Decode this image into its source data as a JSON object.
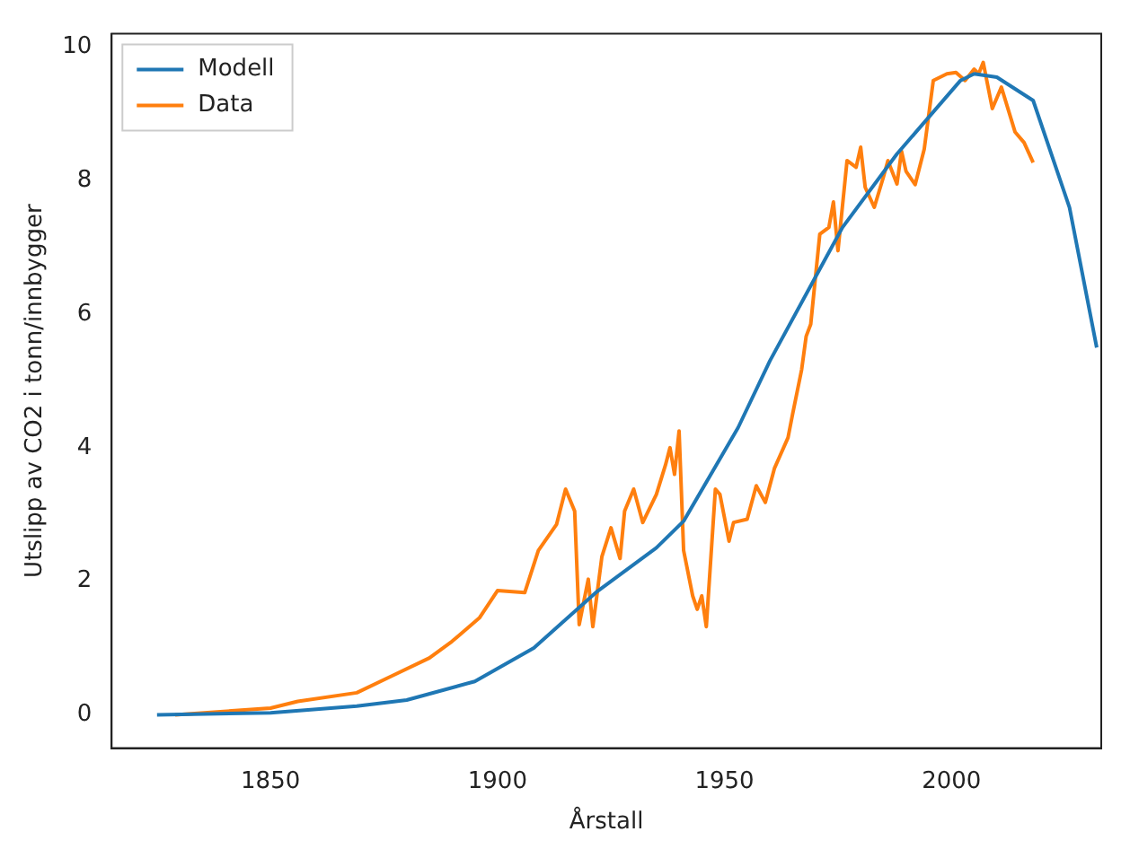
{
  "chart_data": {
    "type": "line",
    "xlabel": "Årstall",
    "ylabel": "Utslipp av CO2 i tonn/innbygger",
    "xlim": [
      1815,
      2033
    ],
    "ylim": [
      -0.5,
      10.2
    ],
    "xticks": [
      1850,
      1900,
      1950,
      2000
    ],
    "yticks": [
      0,
      2,
      4,
      6,
      8,
      10
    ],
    "legend": "top left",
    "grid": false,
    "series": [
      {
        "name": "Modell",
        "color": "#1f77b4",
        "x": [
          1825,
          1850,
          1869,
          1880,
          1895,
          1908,
          1922,
          1935,
          1941,
          1953,
          1960,
          1972,
          1976,
          1988,
          2002,
          2005,
          2010,
          2018,
          2026,
          2032
        ],
        "values": [
          0,
          0.03,
          0.13,
          0.22,
          0.5,
          1.0,
          1.85,
          2.5,
          2.9,
          4.3,
          5.3,
          6.8,
          7.3,
          8.4,
          9.5,
          9.6,
          9.55,
          9.2,
          7.6,
          5.5
        ]
      },
      {
        "name": "Data",
        "color": "#ff7f0e",
        "x": [
          1829,
          1850,
          1856,
          1869,
          1877,
          1885,
          1890,
          1896,
          1900,
          1906,
          1909,
          1913,
          1915,
          1917,
          1918,
          1920,
          1921,
          1923,
          1925,
          1927,
          1928,
          1930,
          1932,
          1935,
          1937,
          1938,
          1939,
          1940,
          1941,
          1943,
          1944,
          1945,
          1946,
          1948,
          1949,
          1951,
          1952,
          1955,
          1957,
          1959,
          1961,
          1964,
          1965,
          1967,
          1968,
          1969,
          1971,
          1973,
          1974,
          1975,
          1977,
          1979,
          1980,
          1981,
          1983,
          1985,
          1986,
          1988,
          1989,
          1990,
          1992,
          1994,
          1996,
          1999,
          2001,
          2003,
          2005,
          2006,
          2007,
          2009,
          2011,
          2014,
          2016,
          2018
        ],
        "values": [
          0,
          0.1,
          0.2,
          0.33,
          0.59,
          0.85,
          1.1,
          1.45,
          1.86,
          1.83,
          2.46,
          2.85,
          3.38,
          3.05,
          1.35,
          2.03,
          1.32,
          2.37,
          2.8,
          2.34,
          3.05,
          3.38,
          2.88,
          3.3,
          3.74,
          4.0,
          3.6,
          4.25,
          2.46,
          1.78,
          1.58,
          1.78,
          1.32,
          3.38,
          3.3,
          2.6,
          2.88,
          2.93,
          3.43,
          3.18,
          3.69,
          4.15,
          4.5,
          5.17,
          5.67,
          5.85,
          7.2,
          7.3,
          7.68,
          6.95,
          8.3,
          8.2,
          8.5,
          7.9,
          7.6,
          8.05,
          8.3,
          7.95,
          8.44,
          8.14,
          7.94,
          8.47,
          9.5,
          9.6,
          9.62,
          9.5,
          9.67,
          9.6,
          9.77,
          9.08,
          9.4,
          8.73,
          8.57,
          8.27
        ]
      }
    ]
  }
}
